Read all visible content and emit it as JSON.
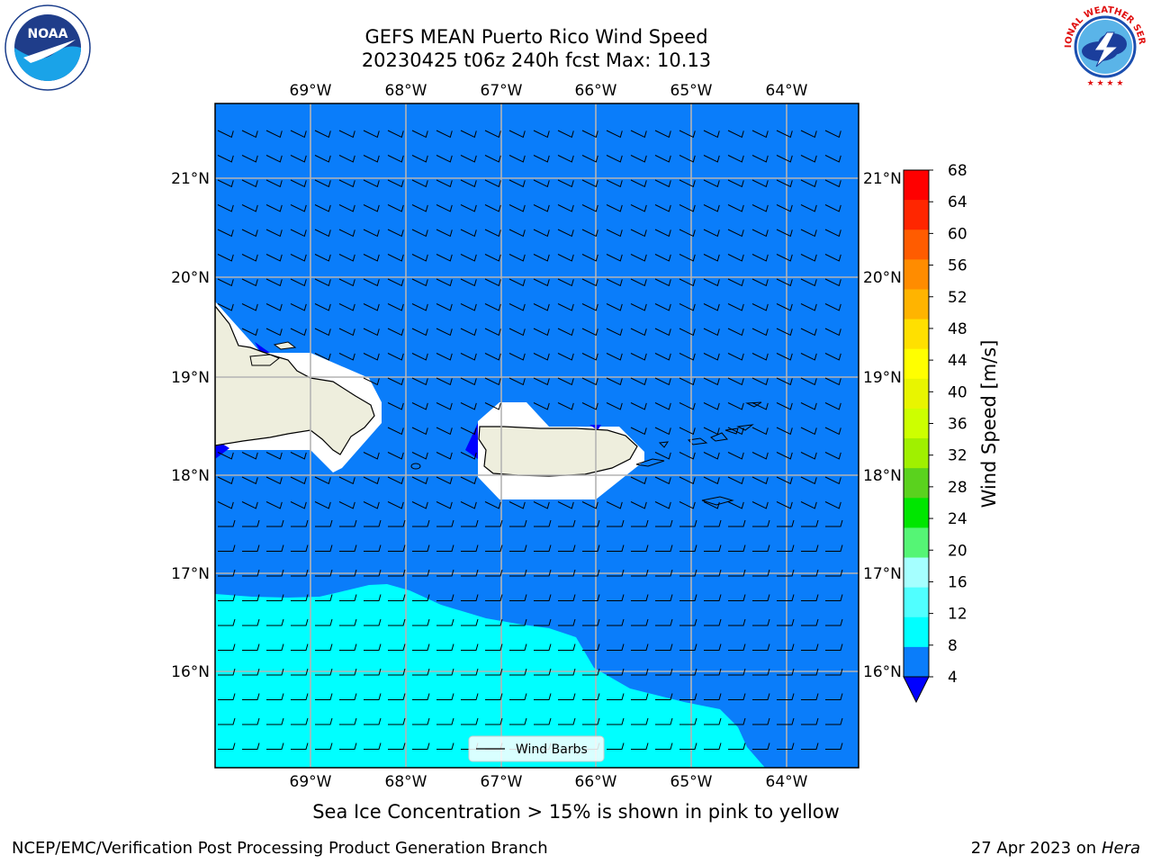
{
  "header": {
    "title_line1": "GEFS MEAN Puerto Rico Wind Speed",
    "title_line2": "20230425 t06z 240h fcst   Max: 10.13"
  },
  "logos": {
    "left_text": "NOAA",
    "left_ring_text": "NATIONAL OCEANIC AND ATMOSPHERIC ADMINISTRATION · U.S. DEPARTMENT OF COMMERCE",
    "right_ring_text": "NATIONAL WEATHER SERVICE"
  },
  "map": {
    "lon_labels": [
      "69°W",
      "68°W",
      "67°W",
      "66°W",
      "65°W",
      "64°W"
    ],
    "lat_labels": [
      "21°N",
      "20°N",
      "19°N",
      "18°N",
      "17°N",
      "16°N"
    ],
    "ocean_color": "#0a7dfa",
    "band_color": "#00ffff",
    "land_color": "#eeeedd",
    "legend_label": "Wind Barbs"
  },
  "colorbar": {
    "label": "Wind Speed [m/s]",
    "ticks": [
      "68",
      "64",
      "60",
      "56",
      "52",
      "48",
      "44",
      "40",
      "36",
      "32",
      "28",
      "24",
      "20",
      "16",
      "12",
      "8",
      "4"
    ],
    "colors": [
      "#ff0000",
      "#ff2600",
      "#ff5c00",
      "#ff8c00",
      "#ffb400",
      "#ffe000",
      "#ffff00",
      "#e8f500",
      "#cdff00",
      "#a0f000",
      "#5ad21e",
      "#00e600",
      "#55f575",
      "#a5ffff",
      "#50ffff",
      "#00ffff",
      "#0a7dfa"
    ],
    "under_color": "#0000ff"
  },
  "caption": "Sea Ice Concentration > 15% is shown in pink to yellow",
  "footer": {
    "left": "NCEP/EMC/Verification Post Processing Product Generation Branch",
    "right_date": "27 Apr 2023 on ",
    "right_host": "Hera"
  }
}
